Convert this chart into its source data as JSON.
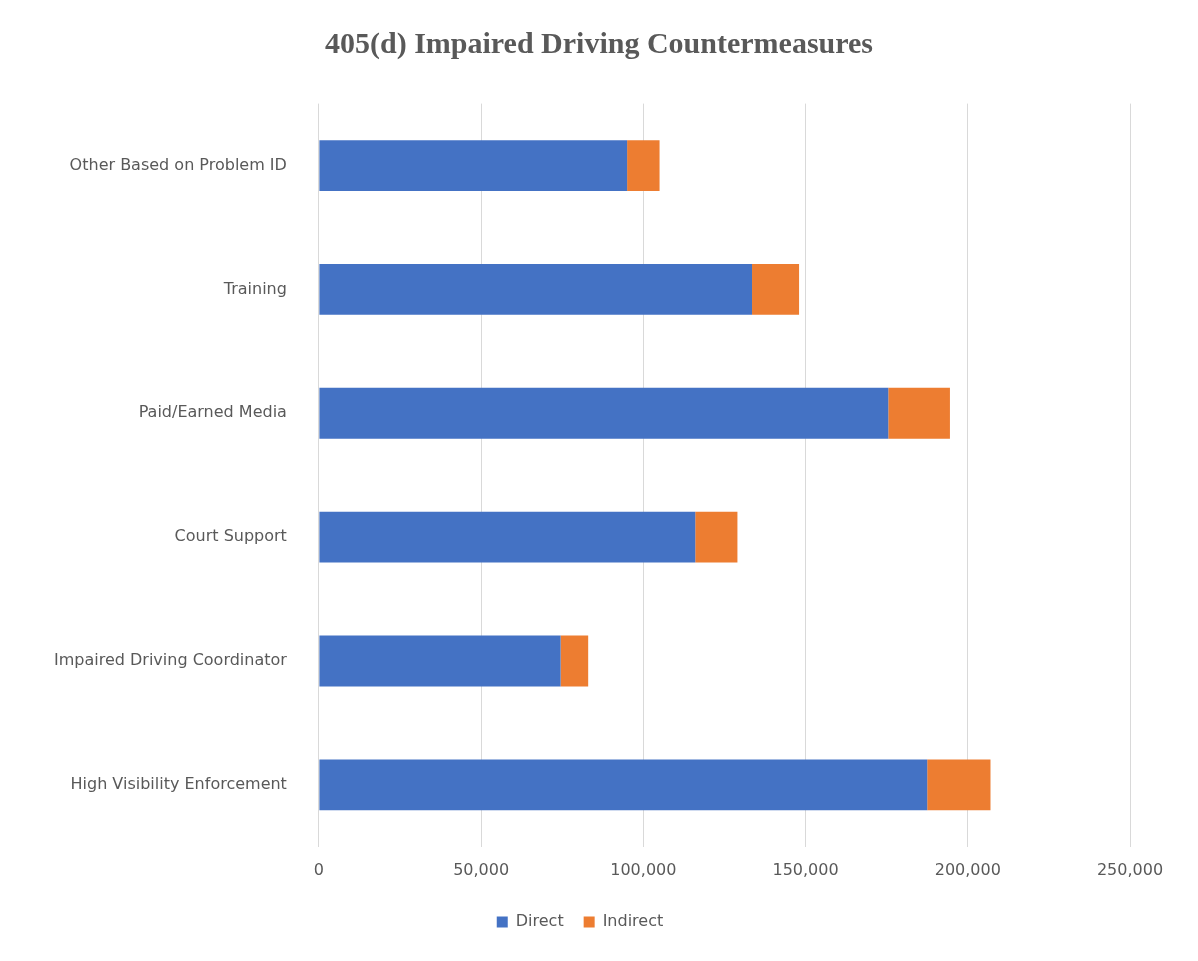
{
  "chart_data": {
    "type": "bar",
    "title": "405(d) Impaired Driving Countermeasures",
    "orientation": "horizontal",
    "stacked": true,
    "categories": [
      "Other Based on Problem ID",
      "Training",
      "Paid/Earned Media",
      "Court Support",
      "Impaired Driving Coordinator",
      "High Visibility Enforcement"
    ],
    "series": [
      {
        "name": "Direct",
        "color": "#4472c4",
        "values": [
          95000,
          133500,
          175500,
          116000,
          74500,
          187500
        ]
      },
      {
        "name": "Indirect",
        "color": "#ed7d31",
        "values": [
          10000,
          14500,
          19000,
          13000,
          8500,
          19500
        ]
      }
    ],
    "xlim": [
      0,
      250000
    ],
    "xticks": [
      0,
      {
        "value": 50000,
        "label": "50,000"
      },
      {
        "value": 100000,
        "label": "100,000"
      },
      {
        "value": 150000,
        "label": "150,000"
      },
      {
        "value": 200000,
        "label": "200,000"
      },
      {
        "value": 250000,
        "label": "250,000"
      }
    ],
    "grid": "x",
    "legend": "bottom"
  }
}
